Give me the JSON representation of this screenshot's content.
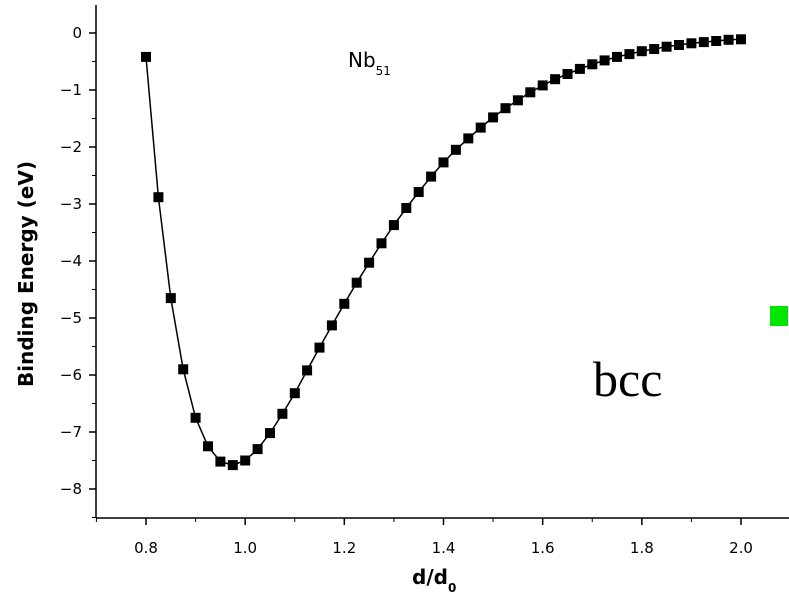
{
  "chart_data": {
    "type": "line",
    "title": "Nb",
    "title_subscript": "51",
    "annotation": "bcc",
    "xlabel": "d/d",
    "xlabel_subscript": "0",
    "ylabel": "Binding Energy (eV)",
    "xlim": [
      0.7,
      2.1
    ],
    "ylim": [
      -8.6,
      0.5
    ],
    "xticks": [
      "0.8",
      "1.0",
      "1.2",
      "1.4",
      "1.6",
      "1.8",
      "2.0"
    ],
    "yticks": [
      "0",
      "−1",
      "−2",
      "−3",
      "−4",
      "−5",
      "−6",
      "−7",
      "−8"
    ],
    "grid": false,
    "marker": "square",
    "series": [
      {
        "x": [
          0.8,
          0.825,
          0.85,
          0.875,
          0.9,
          0.925,
          0.95,
          0.975,
          1.0,
          1.025,
          1.05,
          1.075,
          1.1,
          1.125,
          1.15,
          1.175,
          1.2,
          1.225,
          1.25,
          1.275,
          1.3,
          1.325,
          1.35,
          1.375,
          1.4,
          1.425,
          1.45,
          1.475,
          1.5,
          1.525,
          1.55,
          1.575,
          1.6,
          1.625,
          1.65,
          1.675,
          1.7,
          1.725,
          1.75,
          1.775,
          1.8,
          1.825,
          1.85,
          1.875,
          1.9,
          1.925,
          1.95,
          1.975,
          2.0
        ],
        "values": [
          -0.42,
          -2.88,
          -4.65,
          -5.9,
          -6.75,
          -7.25,
          -7.52,
          -7.58,
          -7.5,
          -7.3,
          -7.02,
          -6.68,
          -6.32,
          -5.92,
          -5.52,
          -5.13,
          -4.75,
          -4.38,
          -4.03,
          -3.69,
          -3.37,
          -3.07,
          -2.79,
          -2.52,
          -2.27,
          -2.05,
          -1.85,
          -1.66,
          -1.48,
          -1.32,
          -1.18,
          -1.04,
          -0.92,
          -0.81,
          -0.72,
          -0.63,
          -0.55,
          -0.48,
          -0.42,
          -0.37,
          -0.32,
          -0.28,
          -0.24,
          -0.21,
          -0.18,
          -0.16,
          -0.14,
          -0.12,
          -0.11
        ]
      }
    ]
  },
  "legend_marker_color": "#00e600"
}
